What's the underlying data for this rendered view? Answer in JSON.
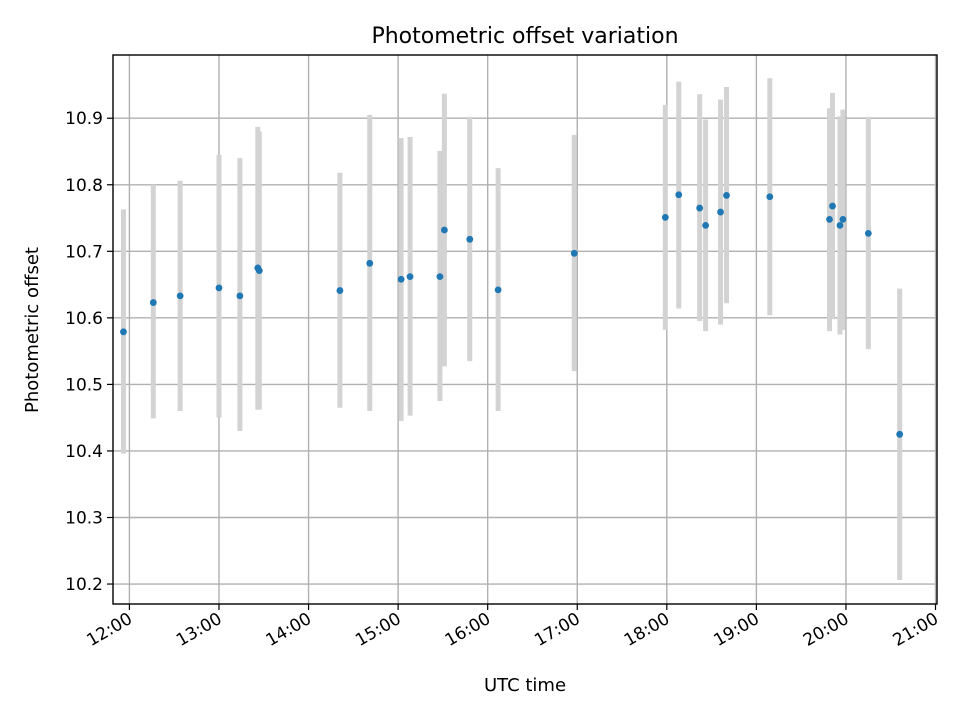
{
  "chart_data": {
    "type": "scatter",
    "title": "Photometric offset variation",
    "xlabel": "UTC time",
    "ylabel": "Photometric offset",
    "xlim": [
      "11:49",
      "21:01"
    ],
    "ylim": [
      10.17,
      10.995
    ],
    "grid": true,
    "x_ticks": [
      "12:00",
      "13:00",
      "14:00",
      "15:00",
      "16:00",
      "17:00",
      "18:00",
      "19:00",
      "20:00",
      "21:00"
    ],
    "y_ticks": [
      10.2,
      10.3,
      10.4,
      10.5,
      10.6,
      10.7,
      10.8,
      10.9
    ],
    "point_color": "#1f77b4",
    "errorbar_color": "#d3d3d3",
    "points": [
      {
        "time": "11:56",
        "y": 10.579,
        "err_low": 10.396,
        "err_high": 10.763
      },
      {
        "time": "12:16",
        "y": 10.623,
        "err_low": 10.449,
        "err_high": 10.8
      },
      {
        "time": "12:34",
        "y": 10.633,
        "err_low": 10.46,
        "err_high": 10.806
      },
      {
        "time": "13:00",
        "y": 10.645,
        "err_low": 10.45,
        "err_high": 10.845
      },
      {
        "time": "13:14",
        "y": 10.633,
        "err_low": 10.43,
        "err_high": 10.84
      },
      {
        "time": "13:26",
        "y": 10.675,
        "err_low": 10.462,
        "err_high": 10.887
      },
      {
        "time": "13:27",
        "y": 10.671,
        "err_low": 10.462,
        "err_high": 10.88
      },
      {
        "time": "14:21",
        "y": 10.641,
        "err_low": 10.465,
        "err_high": 10.818
      },
      {
        "time": "14:41",
        "y": 10.682,
        "err_low": 10.46,
        "err_high": 10.905
      },
      {
        "time": "15:02",
        "y": 10.658,
        "err_low": 10.445,
        "err_high": 10.87
      },
      {
        "time": "15:08",
        "y": 10.662,
        "err_low": 10.453,
        "err_high": 10.872
      },
      {
        "time": "15:28",
        "y": 10.662,
        "err_low": 10.475,
        "err_high": 10.851
      },
      {
        "time": "15:31",
        "y": 10.732,
        "err_low": 10.527,
        "err_high": 10.937
      },
      {
        "time": "15:48",
        "y": 10.718,
        "err_low": 10.535,
        "err_high": 10.902
      },
      {
        "time": "16:07",
        "y": 10.642,
        "err_low": 10.46,
        "err_high": 10.825
      },
      {
        "time": "16:58",
        "y": 10.697,
        "err_low": 10.52,
        "err_high": 10.875
      },
      {
        "time": "17:59",
        "y": 10.751,
        "err_low": 10.582,
        "err_high": 10.92
      },
      {
        "time": "18:08",
        "y": 10.785,
        "err_low": 10.614,
        "err_high": 10.955
      },
      {
        "time": "18:22",
        "y": 10.765,
        "err_low": 10.595,
        "err_high": 10.936
      },
      {
        "time": "18:26",
        "y": 10.739,
        "err_low": 10.58,
        "err_high": 10.898
      },
      {
        "time": "18:36",
        "y": 10.759,
        "err_low": 10.59,
        "err_high": 10.928
      },
      {
        "time": "18:40",
        "y": 10.784,
        "err_low": 10.622,
        "err_high": 10.947
      },
      {
        "time": "19:09",
        "y": 10.782,
        "err_low": 10.604,
        "err_high": 10.96
      },
      {
        "time": "19:49",
        "y": 10.748,
        "err_low": 10.58,
        "err_high": 10.915
      },
      {
        "time": "19:51",
        "y": 10.768,
        "err_low": 10.598,
        "err_high": 10.938
      },
      {
        "time": "19:56",
        "y": 10.739,
        "err_low": 10.575,
        "err_high": 10.903
      },
      {
        "time": "19:58",
        "y": 10.748,
        "err_low": 10.582,
        "err_high": 10.913
      },
      {
        "time": "20:15",
        "y": 10.727,
        "err_low": 10.553,
        "err_high": 10.902
      },
      {
        "time": "20:36",
        "y": 10.425,
        "err_low": 10.206,
        "err_high": 10.644
      }
    ]
  }
}
